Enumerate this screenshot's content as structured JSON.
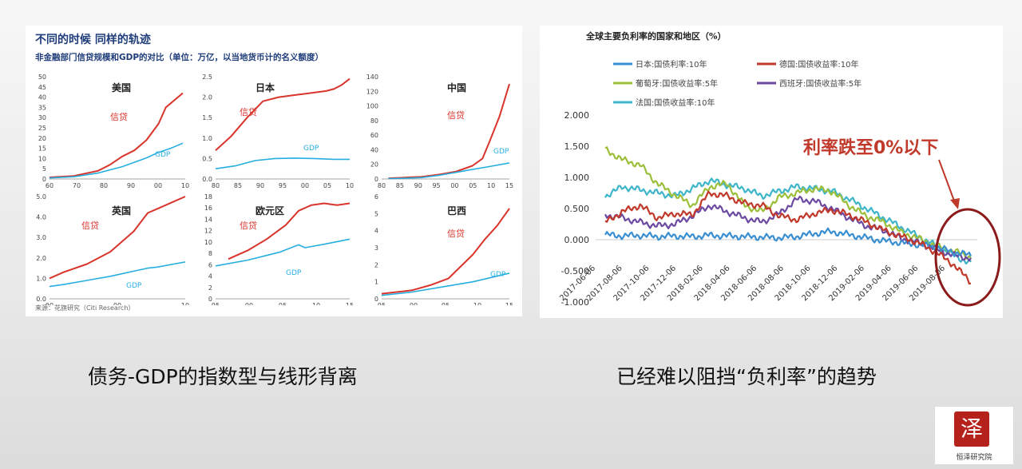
{
  "left": {
    "title": "不同的时候  同样的轨迹",
    "subtitle": "非金融部门信贷规模和GDP的对比（单位：万亿，以当地货币计的名义额度）",
    "source": "来源：花旗研究（Citi Research）"
  },
  "right": {
    "title": "全球主要负利率的国家和地区（%）",
    "annotation": "利率跌至0%以下"
  },
  "captions": {
    "left": "债务-GDP的指数型与线形背离",
    "right": "已经难以阻挡“负利率”的趋势"
  },
  "logo": {
    "seal_char": "泽",
    "name": "恒泽研究院"
  },
  "colors": {
    "credit": "#d9342b",
    "gdp": "#27aee0"
  },
  "chart_data": [
    {
      "type": "line",
      "title": "美国",
      "credit_label": "信贷",
      "gdp_label": "GDP",
      "x_ticks": [
        "60",
        "70",
        "80",
        "90",
        "00",
        "10"
      ],
      "xlim": [
        1960,
        2016
      ],
      "y_ticks": [
        "0",
        "5",
        "10",
        "15",
        "20",
        "25",
        "30",
        "35",
        "40",
        "45",
        "50"
      ],
      "ylim": [
        0,
        50
      ],
      "series": [
        {
          "name": "信贷",
          "x": [
            1960,
            1970,
            1980,
            1985,
            1990,
            1995,
            2000,
            2005,
            2008,
            2010,
            2013,
            2015
          ],
          "y": [
            0.8,
            1.5,
            4,
            7,
            11,
            14,
            19,
            27,
            35,
            37,
            40,
            42
          ]
        },
        {
          "name": "GDP",
          "x": [
            1960,
            1970,
            1980,
            1990,
            2000,
            2005,
            2010,
            2015
          ],
          "y": [
            0.5,
            1.1,
            2.9,
            6,
            10.3,
            13,
            15,
            17.5
          ]
        }
      ]
    },
    {
      "type": "line",
      "title": "日本",
      "credit_label": "信贷",
      "gdp_label": "GDP",
      "x_ticks": [
        "80",
        "85",
        "90",
        "95",
        "00",
        "05",
        "10"
      ],
      "xlim": [
        1980,
        2014
      ],
      "y_ticks": [
        "0.0",
        "0.5",
        "1.0",
        "1.5",
        "2.0",
        "2.5"
      ],
      "ylim": [
        0,
        2.5
      ],
      "series": [
        {
          "name": "信贷",
          "x": [
            1980,
            1984,
            1988,
            1992,
            1996,
            2000,
            2004,
            2008,
            2010,
            2012,
            2014
          ],
          "y": [
            0.7,
            1.05,
            1.5,
            1.9,
            2.0,
            2.05,
            2.1,
            2.15,
            2.2,
            2.3,
            2.45
          ]
        },
        {
          "name": "GDP",
          "x": [
            1980,
            1985,
            1990,
            1995,
            2000,
            2005,
            2010,
            2014
          ],
          "y": [
            0.25,
            0.32,
            0.45,
            0.5,
            0.51,
            0.5,
            0.48,
            0.48
          ]
        }
      ]
    },
    {
      "type": "line",
      "title": "中国",
      "credit_label": "信贷",
      "gdp_label": "GDP",
      "x_ticks": [
        "80",
        "85",
        "90",
        "95",
        "00",
        "05",
        "10",
        "15"
      ],
      "xlim": [
        1978,
        2016
      ],
      "y_ticks": [
        "0",
        "20",
        "40",
        "60",
        "80",
        "100",
        "120",
        "140"
      ],
      "ylim": [
        0,
        140
      ],
      "series": [
        {
          "name": "信贷",
          "x": [
            1980,
            1985,
            1990,
            1995,
            2000,
            2005,
            2008,
            2010,
            2013,
            2016
          ],
          "y": [
            1,
            2,
            3,
            6,
            10,
            18,
            28,
            50,
            85,
            130
          ]
        },
        {
          "name": "GDP",
          "x": [
            1980,
            1985,
            1990,
            1995,
            2000,
            2005,
            2010,
            2016
          ],
          "y": [
            0.5,
            1,
            2,
            5,
            9,
            13,
            17,
            22
          ]
        }
      ]
    },
    {
      "type": "line",
      "title": "英国",
      "credit_label": "信贷",
      "gdp_label": "GDP",
      "x_ticks": [
        "90",
        "00",
        "10"
      ],
      "xlim": [
        1987,
        2016
      ],
      "y_ticks": [
        "0.0",
        "1.0",
        "2.0",
        "3.0",
        "4.0",
        "5.0"
      ],
      "ylim": [
        0,
        5
      ],
      "series": [
        {
          "name": "信贷",
          "x": [
            1987,
            1990,
            1995,
            2000,
            2005,
            2008,
            2010,
            2013,
            2016
          ],
          "y": [
            1.0,
            1.3,
            1.7,
            2.3,
            3.3,
            4.2,
            4.4,
            4.7,
            5.0
          ]
        },
        {
          "name": "GDP",
          "x": [
            1987,
            1990,
            1995,
            2000,
            2005,
            2008,
            2010,
            2016
          ],
          "y": [
            0.6,
            0.7,
            0.9,
            1.1,
            1.35,
            1.5,
            1.55,
            1.8
          ]
        }
      ]
    },
    {
      "type": "line",
      "title": "欧元区",
      "credit_label": "信贷",
      "gdp_label": "GDP",
      "x_ticks": [
        "95",
        "00",
        "05",
        "10",
        "15"
      ],
      "xlim": [
        1995,
        2016
      ],
      "y_ticks": [
        "0",
        "2",
        "4",
        "6",
        "8",
        "10",
        "12",
        "14",
        "16",
        "18"
      ],
      "ylim": [
        0,
        18
      ],
      "series": [
        {
          "name": "信贷",
          "x": [
            1997,
            2000,
            2003,
            2006,
            2008,
            2010,
            2012,
            2014,
            2016
          ],
          "y": [
            7,
            8.5,
            10.5,
            13,
            15.5,
            16.5,
            16.8,
            16.5,
            16.8
          ]
        },
        {
          "name": "GDP",
          "x": [
            1995,
            2000,
            2005,
            2008,
            2009,
            2012,
            2016
          ],
          "y": [
            5.8,
            6.8,
            8.2,
            9.5,
            9.0,
            9.6,
            10.5
          ]
        }
      ]
    },
    {
      "type": "line",
      "title": "巴西",
      "credit_label": "信贷",
      "gdp_label": "GDP",
      "x_ticks": [
        "95",
        "00",
        "05",
        "10",
        "15"
      ],
      "xlim": [
        1995,
        2016
      ],
      "y_ticks": [
        "0",
        "1",
        "2",
        "3",
        "4",
        "5",
        "6"
      ],
      "ylim": [
        0,
        6
      ],
      "series": [
        {
          "name": "信贷",
          "x": [
            1995,
            2000,
            2003,
            2006,
            2008,
            2010,
            2012,
            2014,
            2016
          ],
          "y": [
            0.3,
            0.5,
            0.8,
            1.2,
            1.9,
            2.6,
            3.5,
            4.3,
            5.3
          ]
        },
        {
          "name": "GDP",
          "x": [
            1995,
            2000,
            2005,
            2010,
            2016
          ],
          "y": [
            0.2,
            0.4,
            0.7,
            1.0,
            1.5
          ]
        }
      ]
    },
    {
      "type": "line",
      "title": "全球主要负利率的国家和地区（%）",
      "y_ticks": [
        "2.000",
        "1.500",
        "1.000",
        "0.500",
        "0.000",
        "-0.500",
        "-1.000"
      ],
      "ylim": [
        -1.0,
        2.0
      ],
      "x_ticks": [
        "2017-06-06",
        "2017-08-06",
        "2017-10-06",
        "2017-12-06",
        "2018-02-06",
        "2018-04-06",
        "2018-06-06",
        "2018-08-06",
        "2018-10-06",
        "2018-12-06",
        "2019-02-06",
        "2019-04-06",
        "2019-06-06",
        "2019-08-06"
      ],
      "series": [
        {
          "name": "日本:国债利率:10年",
          "color": "#3a8fd1",
          "y": [
            0.08,
            0.06,
            0.07,
            0.05,
            0.06,
            0.05,
            0.07,
            0.06,
            0.05,
            0.04,
            0.03,
            0.05,
            0.1,
            0.13,
            0.08,
            0.03,
            -0.02,
            -0.05,
            -0.08,
            -0.12,
            -0.2,
            -0.25
          ]
        },
        {
          "name": "德国:国债收益率:10年",
          "color": "#c0392b",
          "y": [
            0.28,
            0.45,
            0.55,
            0.35,
            0.42,
            0.4,
            0.75,
            0.7,
            0.58,
            0.55,
            0.38,
            0.32,
            0.42,
            0.48,
            0.4,
            0.28,
            0.15,
            0.05,
            -0.05,
            -0.2,
            -0.4,
            -0.68
          ]
        },
        {
          "name": "葡萄牙:国债收益率:5年",
          "color": "#9cbf3b",
          "y": [
            1.45,
            1.28,
            1.2,
            0.9,
            0.72,
            0.55,
            0.85,
            0.9,
            0.55,
            0.45,
            0.68,
            0.75,
            0.82,
            0.78,
            0.55,
            0.38,
            0.28,
            0.12,
            0.02,
            -0.1,
            -0.18,
            -0.28
          ]
        },
        {
          "name": "西班牙:国债收益率:5年",
          "color": "#6c4aa2",
          "y": [
            0.4,
            0.35,
            0.28,
            0.22,
            0.25,
            0.38,
            0.55,
            0.45,
            0.35,
            0.28,
            0.42,
            0.65,
            0.62,
            0.5,
            0.35,
            0.22,
            0.15,
            0.02,
            -0.05,
            -0.15,
            -0.25,
            -0.3
          ]
        },
        {
          "name": "法国:国债收益率:10年",
          "color": "#3fb5c9",
          "y": [
            0.7,
            0.85,
            0.8,
            0.75,
            0.7,
            0.82,
            0.95,
            0.88,
            0.82,
            0.7,
            0.78,
            0.85,
            0.82,
            0.78,
            0.65,
            0.5,
            0.35,
            0.2,
            0.05,
            -0.1,
            -0.25,
            -0.38
          ]
        }
      ]
    }
  ]
}
